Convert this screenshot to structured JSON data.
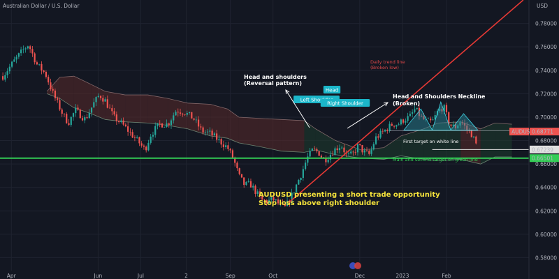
{
  "chart_data": {
    "type": "candlestick",
    "title": "Australian Dollar / U.S. Dollar",
    "currency": "USD",
    "symbol": "AUDUSD",
    "last_price": "0.68771",
    "y_ticks": [
      "0.78000",
      "0.76000",
      "0.74000",
      "0.72000",
      "0.70000",
      "0.68000",
      "0.66000",
      "0.64000",
      "0.62000",
      "0.60000",
      "0.58000"
    ],
    "ylim": [
      0.569,
      0.8
    ],
    "x_ticks": [
      "Apr",
      "Jun",
      "Jul",
      "2",
      "Sep",
      "Oct",
      "Dec",
      "2023",
      "Feb"
    ],
    "x_tick_days": [
      0,
      61,
      91,
      123,
      154,
      184,
      245,
      275,
      306
    ],
    "xlim_days": [
      -8,
      364
    ],
    "price_path": [
      [
        -6,
        0.735
      ],
      [
        2,
        0.748
      ],
      [
        8,
        0.757
      ],
      [
        12,
        0.762
      ],
      [
        18,
        0.745
      ],
      [
        24,
        0.737
      ],
      [
        30,
        0.718
      ],
      [
        36,
        0.703
      ],
      [
        40,
        0.695
      ],
      [
        45,
        0.706
      ],
      [
        52,
        0.698
      ],
      [
        58,
        0.712
      ],
      [
        62,
        0.719
      ],
      [
        66,
        0.714
      ],
      [
        72,
        0.7
      ],
      [
        78,
        0.694
      ],
      [
        84,
        0.686
      ],
      [
        90,
        0.678
      ],
      [
        94,
        0.672
      ],
      [
        98,
        0.685
      ],
      [
        104,
        0.694
      ],
      [
        110,
        0.694
      ],
      [
        116,
        0.706
      ],
      [
        122,
        0.704
      ],
      [
        128,
        0.699
      ],
      [
        134,
        0.688
      ],
      [
        140,
        0.686
      ],
      [
        146,
        0.68
      ],
      [
        152,
        0.674
      ],
      [
        156,
        0.665
      ],
      [
        160,
        0.65
      ],
      [
        164,
        0.642
      ],
      [
        168,
        0.643
      ],
      [
        172,
        0.636
      ],
      [
        176,
        0.629
      ],
      [
        180,
        0.628
      ],
      [
        184,
        0.63
      ],
      [
        188,
        0.626
      ],
      [
        192,
        0.622
      ],
      [
        196,
        0.63
      ],
      [
        200,
        0.641
      ],
      [
        204,
        0.652
      ],
      [
        208,
        0.665
      ],
      [
        212,
        0.672
      ],
      [
        216,
        0.67
      ],
      [
        220,
        0.663
      ],
      [
        224,
        0.668
      ],
      [
        228,
        0.673
      ],
      [
        232,
        0.676
      ],
      [
        236,
        0.667
      ],
      [
        240,
        0.668
      ],
      [
        244,
        0.676
      ],
      [
        248,
        0.67
      ],
      [
        252,
        0.668
      ],
      [
        256,
        0.682
      ],
      [
        260,
        0.686
      ],
      [
        264,
        0.69
      ],
      [
        268,
        0.694
      ],
      [
        272,
        0.694
      ],
      [
        276,
        0.698
      ],
      [
        280,
        0.7
      ],
      [
        284,
        0.707
      ],
      [
        288,
        0.7
      ],
      [
        292,
        0.696
      ],
      [
        296,
        0.696
      ],
      [
        300,
        0.705
      ],
      [
        304,
        0.709
      ],
      [
        308,
        0.694
      ],
      [
        312,
        0.691
      ],
      [
        316,
        0.697
      ],
      [
        320,
        0.69
      ],
      [
        324,
        0.685
      ],
      [
        328,
        0.673
      ]
    ],
    "cloud_top": [
      [
        25,
        0.722
      ],
      [
        34,
        0.734
      ],
      [
        44,
        0.735
      ],
      [
        56,
        0.728
      ],
      [
        66,
        0.722
      ],
      [
        80,
        0.719
      ],
      [
        96,
        0.719
      ],
      [
        110,
        0.716
      ],
      [
        124,
        0.712
      ],
      [
        140,
        0.711
      ],
      [
        152,
        0.707
      ],
      [
        160,
        0.7
      ],
      [
        174,
        0.699
      ],
      [
        190,
        0.698
      ],
      [
        206,
        0.697
      ],
      [
        214,
        0.69
      ],
      [
        228,
        0.68
      ],
      [
        246,
        0.672
      ],
      [
        262,
        0.674
      ],
      [
        274,
        0.684
      ],
      [
        290,
        0.69
      ],
      [
        300,
        0.695
      ],
      [
        316,
        0.696
      ],
      [
        330,
        0.69
      ],
      [
        340,
        0.695
      ],
      [
        352,
        0.694
      ]
    ],
    "cloud_bottom": [
      [
        25,
        0.72
      ],
      [
        34,
        0.716
      ],
      [
        44,
        0.708
      ],
      [
        56,
        0.703
      ],
      [
        66,
        0.698
      ],
      [
        80,
        0.696
      ],
      [
        96,
        0.695
      ],
      [
        110,
        0.693
      ],
      [
        124,
        0.69
      ],
      [
        140,
        0.684
      ],
      [
        152,
        0.682
      ],
      [
        160,
        0.678
      ],
      [
        174,
        0.675
      ],
      [
        190,
        0.671
      ],
      [
        206,
        0.67
      ],
      [
        214,
        0.672
      ],
      [
        228,
        0.668
      ],
      [
        246,
        0.665
      ],
      [
        262,
        0.664
      ],
      [
        274,
        0.667
      ],
      [
        290,
        0.664
      ],
      [
        300,
        0.663
      ],
      [
        316,
        0.664
      ],
      [
        330,
        0.66
      ],
      [
        340,
        0.666
      ],
      [
        352,
        0.666
      ]
    ],
    "trendline": {
      "label_lines": [
        "Daily trend line",
        "(Broken low)"
      ],
      "from": [
        196,
        0.628
      ],
      "to": [
        360,
        0.8
      ]
    },
    "neckline_level": 0.6885,
    "white_target": {
      "value": 0.67239,
      "label": "0.67239",
      "note": "First target on white line"
    },
    "green_target": {
      "value": 0.66501,
      "label": "0.66501",
      "note": "Main and second target on green line"
    },
    "pattern": {
      "title_lines": [
        "Head and shoulders",
        "(Reversal pattern)"
      ],
      "left_shoulder": "Left Shoulder",
      "head": "Head",
      "right_shoulder": "Right Shoulder",
      "neckline_lines": [
        "Head and Shoulders Neckline",
        "(Broken)"
      ]
    },
    "trade_notes": [
      "AUDUSD presenting a short trade opportunity",
      "Stop loss above right shoulder"
    ]
  },
  "colors": {
    "background": "#131722",
    "grid": "#1f2330",
    "bull": "#26a69a",
    "bear": "#ef5350",
    "trendline": "#e53935",
    "green_line": "#33cc55",
    "white_line": "#e0e0e0",
    "cloud_bear": "#5a2a2a",
    "cloud_bull": "#1e3d2e",
    "pattern_fill": "#2a8fa0",
    "label_box": "#1bb6c9",
    "note_yellow": "#f5e33b",
    "price_tag": "#ef5350"
  }
}
